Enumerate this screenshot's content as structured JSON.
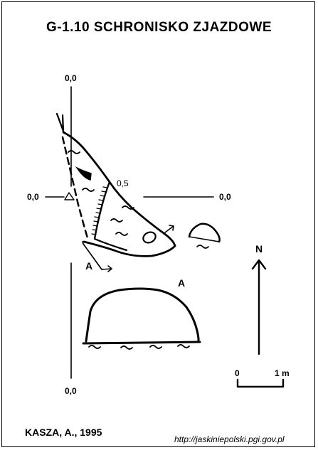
{
  "title": "G-1.10  SCHRONISKO ZJAZDOWE",
  "datum_labels": {
    "top": "0,0",
    "left": "0,0",
    "right": "0,0",
    "bottom": "0,0",
    "depth": "0,5"
  },
  "section_labels": {
    "plan_a": "A",
    "section_a": "A"
  },
  "north_label": "N",
  "scale": {
    "zero": "0",
    "one": "1 m"
  },
  "author": "KASZA, A., 1995",
  "source_url": "http://jaskiniepolski.pgi.gov.pl",
  "colors": {
    "ink": "#000000",
    "background": "#ffffff"
  }
}
